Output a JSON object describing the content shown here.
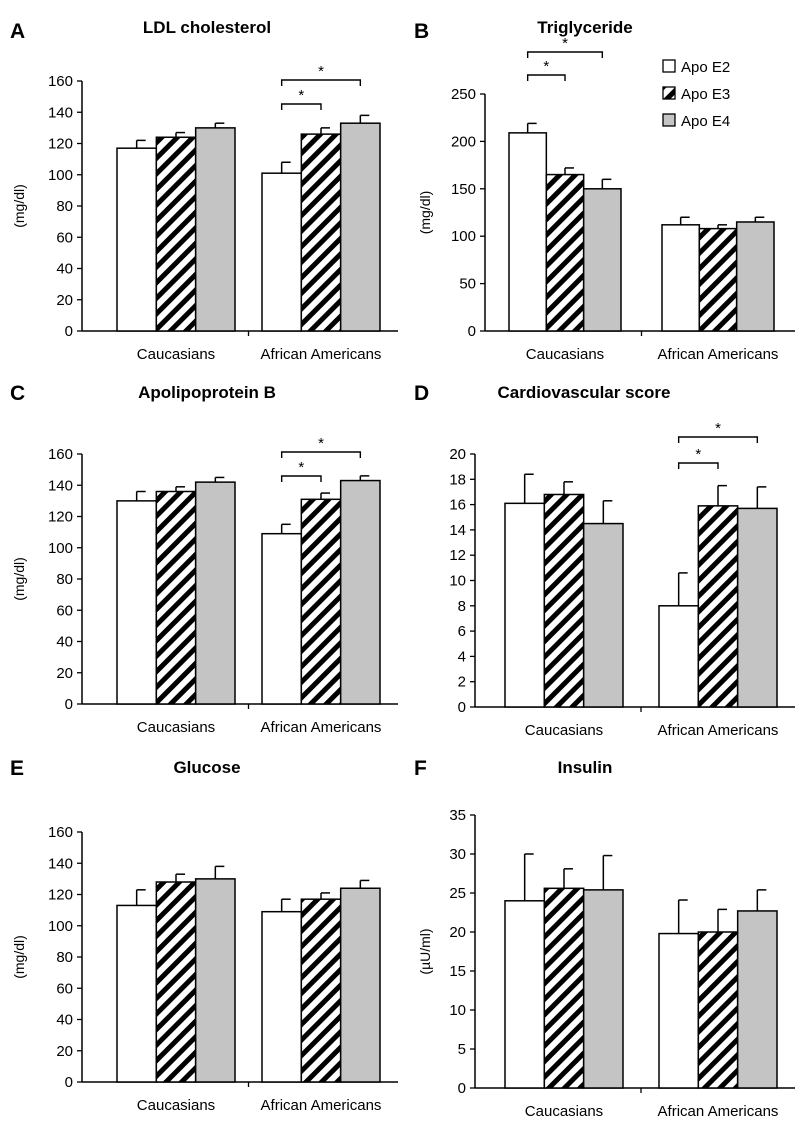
{
  "colors": {
    "e2_fill": "#ffffff",
    "e3_fill": "hatch-black-diagonal",
    "e4_fill": "#c4c4c4",
    "stroke": "#000000"
  },
  "legend": {
    "placement": "top-right of panel B",
    "items": [
      {
        "label": "Apo E2",
        "fill": "#ffffff"
      },
      {
        "label": "Apo E3",
        "fill": "hatch"
      },
      {
        "label": "Apo E4",
        "fill": "#c4c4c4"
      }
    ]
  },
  "chart_data": [
    {
      "panel": "A",
      "type": "bar",
      "title": "LDL cholesterol",
      "ylabel": "(mg/dl)",
      "ylim": [
        0,
        160
      ],
      "yticks": [
        0,
        20,
        40,
        60,
        80,
        100,
        120,
        140,
        160
      ],
      "categories": [
        "Caucasians",
        "African Americans"
      ],
      "series": [
        {
          "name": "Apo E2",
          "values": [
            117,
            101
          ],
          "errors": [
            5,
            7
          ]
        },
        {
          "name": "Apo E3",
          "values": [
            124,
            126
          ],
          "errors": [
            3,
            4
          ]
        },
        {
          "name": "Apo E4",
          "values": [
            130,
            133
          ],
          "errors": [
            3,
            5
          ]
        }
      ],
      "significance": [
        {
          "category": 1,
          "from": 0,
          "to": 1,
          "label": "*"
        },
        {
          "category": 1,
          "from": 0,
          "to": 2,
          "label": "*"
        }
      ]
    },
    {
      "panel": "B",
      "type": "bar",
      "title": "Triglyceride",
      "ylabel": "(mg/dl)",
      "ylim": [
        0,
        250
      ],
      "yticks": [
        0,
        50,
        100,
        150,
        200,
        250
      ],
      "categories": [
        "Caucasians",
        "African Americans"
      ],
      "series": [
        {
          "name": "Apo E2",
          "values": [
            209,
            112
          ],
          "errors": [
            10,
            8
          ]
        },
        {
          "name": "Apo E3",
          "values": [
            165,
            108
          ],
          "errors": [
            7,
            4
          ]
        },
        {
          "name": "Apo E4",
          "values": [
            150,
            115
          ],
          "errors": [
            10,
            5
          ]
        }
      ],
      "significance": [
        {
          "category": 0,
          "from": 0,
          "to": 1,
          "label": "*"
        },
        {
          "category": 0,
          "from": 0,
          "to": 2,
          "label": "*"
        }
      ]
    },
    {
      "panel": "C",
      "type": "bar",
      "title": "Apolipoprotein B",
      "ylabel": "(mg/dl)",
      "ylim": [
        0,
        160
      ],
      "yticks": [
        0,
        20,
        40,
        60,
        80,
        100,
        120,
        140,
        160
      ],
      "categories": [
        "Caucasians",
        "African Americans"
      ],
      "series": [
        {
          "name": "Apo E2",
          "values": [
            130,
            109
          ],
          "errors": [
            6,
            6
          ]
        },
        {
          "name": "Apo E3",
          "values": [
            136,
            131
          ],
          "errors": [
            3,
            4
          ]
        },
        {
          "name": "Apo E4",
          "values": [
            142,
            143
          ],
          "errors": [
            3,
            3
          ]
        }
      ],
      "significance": [
        {
          "category": 1,
          "from": 0,
          "to": 1,
          "label": "*"
        },
        {
          "category": 1,
          "from": 0,
          "to": 2,
          "label": "*"
        }
      ]
    },
    {
      "panel": "D",
      "type": "bar",
      "title": "Cardiovascular score",
      "ylabel": "",
      "ylim": [
        0,
        20
      ],
      "yticks": [
        0,
        2,
        4,
        6,
        8,
        10,
        12,
        14,
        16,
        18,
        20
      ],
      "categories": [
        "Caucasians",
        "African Americans"
      ],
      "series": [
        {
          "name": "Apo E2",
          "values": [
            16.1,
            8.0
          ],
          "errors": [
            2.3,
            2.6
          ]
        },
        {
          "name": "Apo E3",
          "values": [
            16.8,
            15.9
          ],
          "errors": [
            1.0,
            1.6
          ]
        },
        {
          "name": "Apo E4",
          "values": [
            14.5,
            15.7
          ],
          "errors": [
            1.8,
            1.7
          ]
        }
      ],
      "significance": [
        {
          "category": 1,
          "from": 0,
          "to": 1,
          "label": "*"
        },
        {
          "category": 1,
          "from": 0,
          "to": 2,
          "label": "*"
        }
      ]
    },
    {
      "panel": "E",
      "type": "bar",
      "title": "Glucose",
      "ylabel": "(mg/dl)",
      "ylim": [
        0,
        160
      ],
      "yticks": [
        0,
        20,
        40,
        60,
        80,
        100,
        120,
        140,
        160
      ],
      "categories": [
        "Caucasians",
        "African Americans"
      ],
      "series": [
        {
          "name": "Apo E2",
          "values": [
            113,
            109
          ],
          "errors": [
            10,
            8
          ]
        },
        {
          "name": "Apo E3",
          "values": [
            128,
            117
          ],
          "errors": [
            5,
            4
          ]
        },
        {
          "name": "Apo E4",
          "values": [
            130,
            124
          ],
          "errors": [
            8,
            5
          ]
        }
      ],
      "significance": []
    },
    {
      "panel": "F",
      "type": "bar",
      "title": "Insulin",
      "ylabel": "(µU/ml)",
      "ylim": [
        0,
        35
      ],
      "yticks": [
        0,
        5,
        10,
        15,
        20,
        25,
        30,
        35
      ],
      "categories": [
        "Caucasians",
        "African Americans"
      ],
      "series": [
        {
          "name": "Apo E2",
          "values": [
            24.0,
            19.8
          ],
          "errors": [
            6.0,
            4.3
          ]
        },
        {
          "name": "Apo E3",
          "values": [
            25.6,
            20.0
          ],
          "errors": [
            2.5,
            2.9
          ]
        },
        {
          "name": "Apo E4",
          "values": [
            25.4,
            22.7
          ],
          "errors": [
            4.4,
            2.7
          ]
        }
      ],
      "significance": []
    }
  ]
}
